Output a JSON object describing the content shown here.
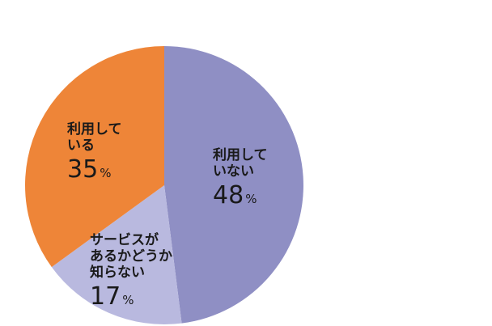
{
  "chart_data": {
    "type": "pie",
    "title": "",
    "unit": "%",
    "start_angle_deg": 0,
    "direction": "clockwise",
    "slices": [
      {
        "label_lines": [
          "利用して",
          "いない"
        ],
        "value": 48,
        "value_text": "48",
        "color": "#8f8fc4"
      },
      {
        "label_lines": [
          "サービスが",
          "あるかどうか",
          "知らない"
        ],
        "value": 17,
        "value_text": "17",
        "color": "#b9b9df"
      },
      {
        "label_lines": [
          "利用して",
          "いる"
        ],
        "value": 35,
        "value_text": "35",
        "color": "#ee8538"
      }
    ],
    "legend": "none",
    "grid": false
  }
}
